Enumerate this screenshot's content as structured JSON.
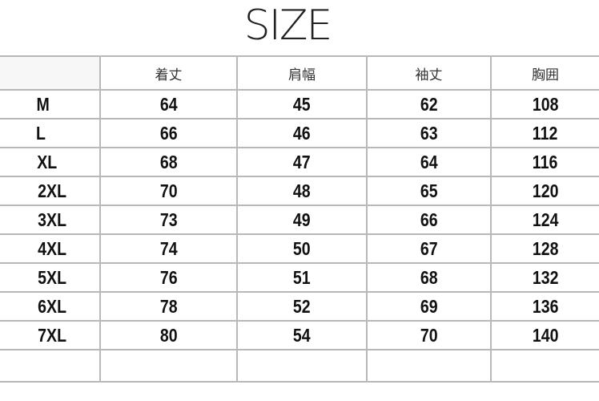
{
  "title": "SIZE",
  "table": {
    "headers": [
      "",
      "着丈",
      "肩幅",
      "袖丈",
      "胸囲"
    ],
    "rows": [
      [
        "M",
        "64",
        "45",
        "62",
        "108"
      ],
      [
        "L",
        "66",
        "46",
        "63",
        "112"
      ],
      [
        "XL",
        "68",
        "47",
        "64",
        "116"
      ],
      [
        "2XL",
        "70",
        "48",
        "65",
        "120"
      ],
      [
        "3XL",
        "73",
        "49",
        "66",
        "124"
      ],
      [
        "4XL",
        "74",
        "50",
        "67",
        "128"
      ],
      [
        "5XL",
        "76",
        "51",
        "68",
        "132"
      ],
      [
        "6XL",
        "78",
        "52",
        "69",
        "136"
      ],
      [
        "7XL",
        "80",
        "54",
        "70",
        "140"
      ]
    ]
  }
}
